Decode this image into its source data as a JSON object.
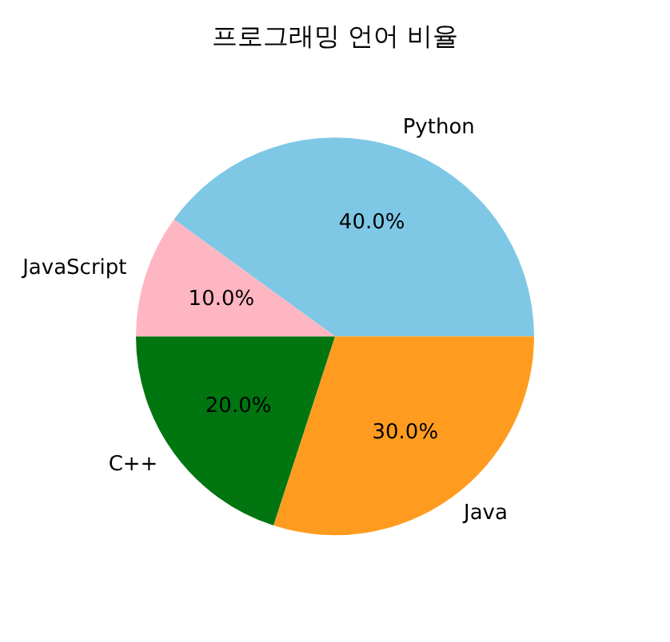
{
  "chart_data": {
    "type": "pie",
    "title": "프로그래밍 언어 비율",
    "categories": [
      "Python",
      "Java",
      "C++",
      "JavaScript"
    ],
    "values": [
      40,
      30,
      20,
      10
    ],
    "colors": [
      "#7ec8e6",
      "#ff9c20",
      "#007510",
      "#ffb6c3"
    ],
    "value_labels": [
      "40.0%",
      "30.0%",
      "20.0%",
      "10.0%"
    ],
    "legend": false
  }
}
